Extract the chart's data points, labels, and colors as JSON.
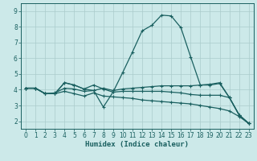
{
  "xlabel": "Humidex (Indice chaleur)",
  "bg_color": "#cce9e9",
  "grid_color": "#aacccc",
  "line_color": "#1a6060",
  "xlim": [
    -0.5,
    23.5
  ],
  "ylim": [
    1.5,
    9.5
  ],
  "xticks": [
    0,
    1,
    2,
    3,
    4,
    5,
    6,
    7,
    8,
    9,
    10,
    11,
    12,
    13,
    14,
    15,
    16,
    17,
    18,
    19,
    20,
    21,
    22,
    23
  ],
  "yticks": [
    2,
    3,
    4,
    5,
    6,
    7,
    8,
    9
  ],
  "series": [
    [
      4.1,
      4.1,
      3.75,
      3.75,
      4.45,
      4.3,
      4.05,
      4.3,
      4.05,
      3.85,
      5.1,
      6.4,
      7.75,
      8.1,
      8.75,
      8.7,
      7.95,
      6.1,
      4.3,
      4.3,
      4.4,
      3.5,
      2.4,
      1.85
    ],
    [
      4.1,
      4.1,
      3.75,
      3.75,
      4.45,
      4.3,
      4.05,
      3.95,
      2.9,
      3.85,
      3.9,
      3.9,
      3.9,
      3.9,
      3.9,
      3.85,
      3.8,
      3.7,
      3.65,
      3.65,
      3.65,
      3.5,
      2.4,
      1.85
    ],
    [
      4.1,
      4.1,
      3.75,
      3.8,
      4.1,
      4.05,
      3.9,
      3.95,
      4.1,
      3.95,
      4.05,
      4.1,
      4.15,
      4.2,
      4.25,
      4.25,
      4.25,
      4.25,
      4.3,
      4.35,
      4.45,
      3.5,
      2.4,
      1.85
    ],
    [
      4.1,
      4.1,
      3.75,
      3.75,
      3.9,
      3.75,
      3.6,
      3.8,
      3.6,
      3.55,
      3.5,
      3.45,
      3.35,
      3.3,
      3.25,
      3.2,
      3.15,
      3.1,
      3.0,
      2.9,
      2.8,
      2.65,
      2.3,
      1.85
    ]
  ]
}
